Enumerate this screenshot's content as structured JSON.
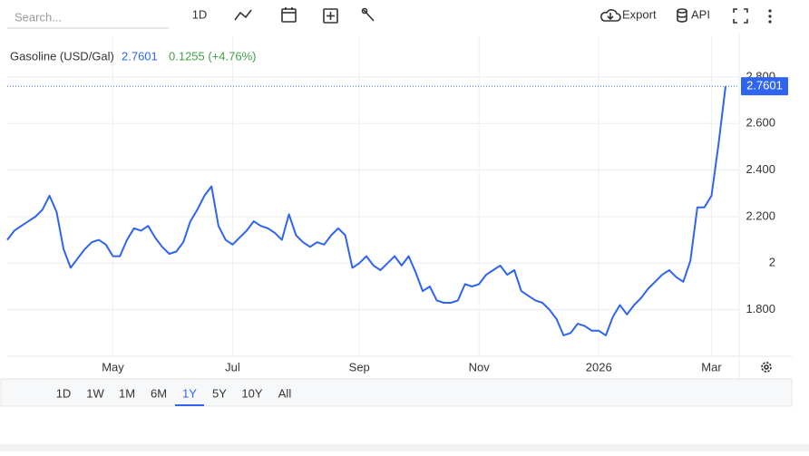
{
  "ui": {
    "search_placeholder": "Search...",
    "interval": "1D",
    "export": "Export",
    "api": "API",
    "ranges": [
      "1D",
      "1W",
      "1M",
      "6M",
      "1Y",
      "5Y",
      "10Y",
      "All"
    ],
    "active_range": 4
  },
  "chart_data": {
    "type": "line",
    "title": "Gasoline (USD/Gal)",
    "last_price": 2.7601,
    "change": "0.1255 (+4.76%)",
    "change_color": "#43a047",
    "price_color": "#2f64f0",
    "categories": [
      null,
      null,
      null,
      null,
      null,
      null,
      null,
      null,
      null,
      null,
      null,
      null,
      null,
      null,
      null,
      "May",
      null,
      null,
      null,
      null,
      null,
      null,
      null,
      null,
      null,
      null,
      null,
      null,
      null,
      null,
      null,
      null,
      "Jul",
      null,
      null,
      null,
      null,
      null,
      null,
      null,
      null,
      null,
      null,
      null,
      null,
      null,
      null,
      null,
      null,
      null,
      "Sep",
      null,
      null,
      null,
      null,
      null,
      null,
      null,
      null,
      null,
      null,
      null,
      null,
      null,
      null,
      null,
      null,
      "Nov",
      null,
      null,
      null,
      null,
      null,
      null,
      null,
      null,
      null,
      null,
      null,
      null,
      null,
      null,
      null,
      null,
      "2026",
      null,
      null,
      null,
      null,
      null,
      null,
      null,
      null,
      null,
      null,
      null,
      null,
      null,
      null,
      null,
      "Mar",
      null,
      null
    ],
    "series": [
      {
        "name": "Gasoline (USD/Gal)",
        "color": "#2f64f0",
        "values": [
          2.1,
          2.14,
          2.16,
          2.18,
          2.2,
          2.23,
          2.29,
          2.22,
          2.06,
          1.98,
          2.02,
          2.06,
          2.09,
          2.1,
          2.08,
          2.03,
          2.03,
          2.1,
          2.15,
          2.14,
          2.16,
          2.11,
          2.07,
          2.04,
          2.05,
          2.09,
          2.18,
          2.23,
          2.29,
          2.33,
          2.16,
          2.1,
          2.08,
          2.11,
          2.14,
          2.18,
          2.16,
          2.15,
          2.13,
          2.1,
          2.21,
          2.12,
          2.09,
          2.07,
          2.09,
          2.08,
          2.12,
          2.15,
          2.12,
          1.98,
          2.0,
          2.03,
          1.99,
          1.97,
          2.0,
          2.03,
          1.99,
          2.03,
          1.96,
          1.88,
          1.9,
          1.84,
          1.83,
          1.83,
          1.84,
          1.91,
          1.9,
          1.91,
          1.95,
          1.97,
          1.99,
          1.95,
          1.97,
          1.88,
          1.86,
          1.84,
          1.83,
          1.8,
          1.76,
          1.69,
          1.7,
          1.74,
          1.73,
          1.71,
          1.71,
          1.69,
          1.77,
          1.82,
          1.78,
          1.82,
          1.85,
          1.89,
          1.92,
          1.95,
          1.97,
          1.94,
          1.92,
          2.01,
          2.24,
          2.24,
          2.29,
          2.51,
          2.7601
        ]
      }
    ],
    "ylim": [
      1.6,
      2.975
    ],
    "yticks": [
      {
        "value": 1.8,
        "label": "1.800"
      },
      2,
      {
        "value": 2.2,
        "label": "2.200"
      },
      {
        "value": 2.4,
        "label": "2.400"
      },
      {
        "value": 2.6,
        "label": "2.600"
      },
      {
        "value": 2.8,
        "label": "2.800"
      }
    ],
    "grid": true
  }
}
